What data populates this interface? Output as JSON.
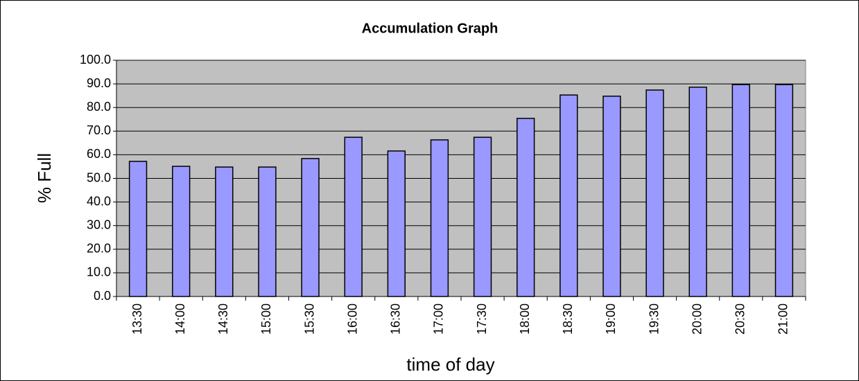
{
  "chart_data": {
    "type": "bar",
    "title": "Accumulation Graph",
    "x_label": "time of day",
    "y_label": "% Full",
    "categories": [
      "13:30",
      "14:00",
      "14:30",
      "15:00",
      "15:30",
      "16:00",
      "16:30",
      "17:00",
      "17:30",
      "18:00",
      "18:30",
      "19:00",
      "19:30",
      "20:00",
      "20:30",
      "21:00"
    ],
    "values": [
      57.2,
      55.1,
      54.8,
      54.8,
      58.4,
      67.4,
      61.6,
      66.3,
      67.4,
      75.4,
      85.3,
      84.8,
      87.4,
      88.6,
      89.7,
      89.7
    ],
    "color": "#9999ff",
    "plot_background": "#c0c0c0",
    "ylim": [
      0,
      100
    ],
    "yticks": [
      {
        "value": 0,
        "label": "0.0"
      },
      {
        "value": 10,
        "label": "10.0"
      },
      {
        "value": 20,
        "label": "20.0"
      },
      {
        "value": 30,
        "label": "30.0"
      },
      {
        "value": 40,
        "label": "40.0"
      },
      {
        "value": 50,
        "label": "50.0"
      },
      {
        "value": 60,
        "label": "60.0"
      },
      {
        "value": 70,
        "label": "70.0"
      },
      {
        "value": 80,
        "label": "80.0"
      },
      {
        "value": 90,
        "label": "90.0"
      },
      {
        "value": 100,
        "label": "100.0"
      }
    ],
    "grid": true
  }
}
